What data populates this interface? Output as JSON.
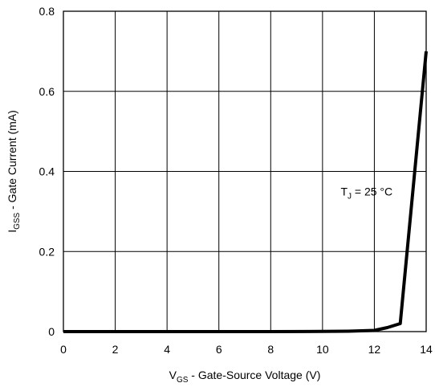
{
  "chart_data": {
    "type": "line",
    "title": "",
    "xlabel": {
      "main": "V",
      "sub": "GS",
      "rest": " - Gate-Source Voltage (V)"
    },
    "ylabel": {
      "main": "I",
      "sub": "GSS",
      "rest": " - Gate Current (mA)"
    },
    "xlim": [
      0,
      14
    ],
    "ylim": [
      0,
      0.8
    ],
    "x_ticks": [
      0,
      2,
      4,
      6,
      8,
      10,
      12,
      14
    ],
    "y_ticks": [
      0,
      0.2,
      0.4,
      0.6,
      0.8
    ],
    "x_tick_labels": [
      "0",
      "2",
      "4",
      "6",
      "8",
      "10",
      "12",
      "14"
    ],
    "y_tick_labels": [
      "0",
      "0.2",
      "0.4",
      "0.6",
      "0.8"
    ],
    "grid": true,
    "annotation": {
      "main": "T",
      "sub": "J",
      "rest": " = 25 °C",
      "x": 10.7,
      "y": 0.34
    },
    "series": [
      {
        "x": [
          0,
          2,
          4,
          6,
          8,
          10,
          11,
          12,
          12.5,
          13,
          14
        ],
        "y": [
          0,
          0,
          0,
          0,
          0,
          0.0005,
          0.001,
          0.003,
          0.01,
          0.02,
          0.7
        ]
      }
    ]
  }
}
